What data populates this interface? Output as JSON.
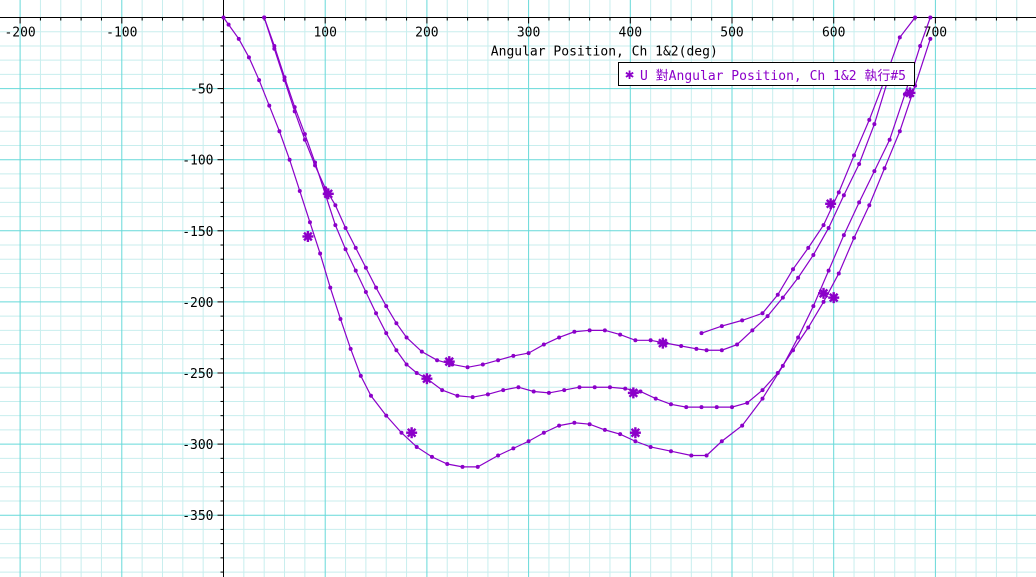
{
  "chart_data": {
    "type": "line",
    "xlabel": "Angular Position, Ch 1&2(deg)",
    "ylabel": "",
    "xlim": [
      -215,
      800
    ],
    "ylim": [
      -385,
      10
    ],
    "x_ticks": [
      -200,
      -100,
      100,
      200,
      300,
      400,
      500,
      600,
      700
    ],
    "y_ticks": [
      -50,
      -100,
      -150,
      -200,
      -250,
      -300,
      -350
    ],
    "grid": true,
    "legend": {
      "position": "top-right",
      "marker": "✱",
      "label": "U 對Angular Position, Ch 1&2 執行#5"
    },
    "colors": {
      "series": "#8b00c9",
      "major_grid": "#66d9d9",
      "minor_grid": "#c8eeee",
      "axis": "#000000"
    },
    "series": [
      {
        "x": [
          0,
          5,
          15,
          25,
          35,
          45,
          55,
          65,
          75,
          85,
          95,
          105,
          115,
          125,
          135,
          145,
          160,
          175,
          190,
          205,
          220,
          235,
          250,
          270,
          285,
          300,
          315,
          330,
          345,
          360,
          375,
          390,
          405,
          420,
          440,
          460,
          475,
          490,
          510,
          530,
          550,
          565,
          580,
          595,
          610,
          625,
          640,
          655,
          670,
          685,
          695
        ],
        "y": [
          0,
          -5,
          -15,
          -28,
          -44,
          -62,
          -80,
          -100,
          -122,
          -144,
          -166,
          -190,
          -212,
          -233,
          -252,
          -266,
          -280,
          -292,
          -302,
          -309,
          -314,
          -316,
          -316,
          -308,
          -303,
          -298,
          -292,
          -287,
          -285,
          -286,
          -290,
          -293,
          -298,
          -302,
          -305,
          -308,
          -308,
          -298,
          -287,
          -268,
          -245,
          -225,
          -203,
          -178,
          -153,
          -130,
          -108,
          -86,
          -54,
          -20,
          0
        ]
      },
      {
        "x": [
          40,
          50,
          60,
          70,
          80,
          90,
          100,
          110,
          120,
          130,
          140,
          150,
          160,
          170,
          180,
          190,
          200,
          215,
          230,
          245,
          260,
          275,
          290,
          305,
          320,
          335,
          350,
          365,
          380,
          395,
          410,
          425,
          440,
          455,
          470,
          485,
          500,
          515,
          530,
          545,
          560,
          575,
          590,
          605,
          620,
          635,
          650,
          665,
          680,
          695
        ],
        "y": [
          0,
          -20,
          -42,
          -63,
          -82,
          -102,
          -124,
          -146,
          -163,
          -178,
          -193,
          -208,
          -222,
          -234,
          -244,
          -250,
          -254,
          -262,
          -266,
          -267,
          -265,
          -262,
          -260,
          -263,
          -264,
          -262,
          -260,
          -260,
          -260,
          -261,
          -263,
          -268,
          -272,
          -274,
          -274,
          -274,
          -274,
          -271,
          -262,
          -250,
          -234,
          -218,
          -200,
          -180,
          -155,
          -132,
          -106,
          -80,
          -48,
          -15
        ]
      },
      {
        "x": [
          40,
          50,
          60,
          70,
          80,
          90,
          100,
          110,
          120,
          130,
          140,
          150,
          160,
          170,
          180,
          195,
          210,
          225,
          240,
          255,
          270,
          285,
          300,
          315,
          330,
          345,
          360,
          375,
          390,
          405,
          420,
          435,
          450,
          465,
          475,
          490,
          505,
          520,
          535,
          550,
          565,
          580,
          595,
          610,
          625,
          640,
          655
        ],
        "y": [
          0,
          -22,
          -44,
          -66,
          -86,
          -104,
          -120,
          -132,
          -148,
          -162,
          -176,
          -190,
          -203,
          -215,
          -225,
          -235,
          -241,
          -244,
          -246,
          -244,
          -241,
          -238,
          -236,
          -230,
          -225,
          -221,
          -220,
          -220,
          -223,
          -227,
          -227,
          -229,
          -231,
          -233,
          -234,
          -234,
          -230,
          -220,
          -210,
          -197,
          -183,
          -167,
          -148,
          -125,
          -103,
          -75,
          -40
        ]
      },
      {
        "x": [
          470,
          490,
          510,
          530,
          545,
          560,
          575,
          590,
          605,
          620,
          635,
          650,
          665,
          680
        ],
        "y": [
          -222,
          -217,
          -213,
          -208,
          -195,
          -177,
          -162,
          -146,
          -123,
          -97,
          -72,
          -44,
          -14,
          0
        ]
      }
    ],
    "highlight_points": [
      {
        "x": 83,
        "y": -154
      },
      {
        "x": 103,
        "y": -124
      },
      {
        "x": 185,
        "y": -292
      },
      {
        "x": 200,
        "y": -254
      },
      {
        "x": 222,
        "y": -242
      },
      {
        "x": 403,
        "y": -264
      },
      {
        "x": 405,
        "y": -292
      },
      {
        "x": 432,
        "y": -229
      },
      {
        "x": 590,
        "y": -194
      },
      {
        "x": 597,
        "y": -131
      },
      {
        "x": 600,
        "y": -197
      },
      {
        "x": 675,
        "y": -53
      }
    ]
  }
}
